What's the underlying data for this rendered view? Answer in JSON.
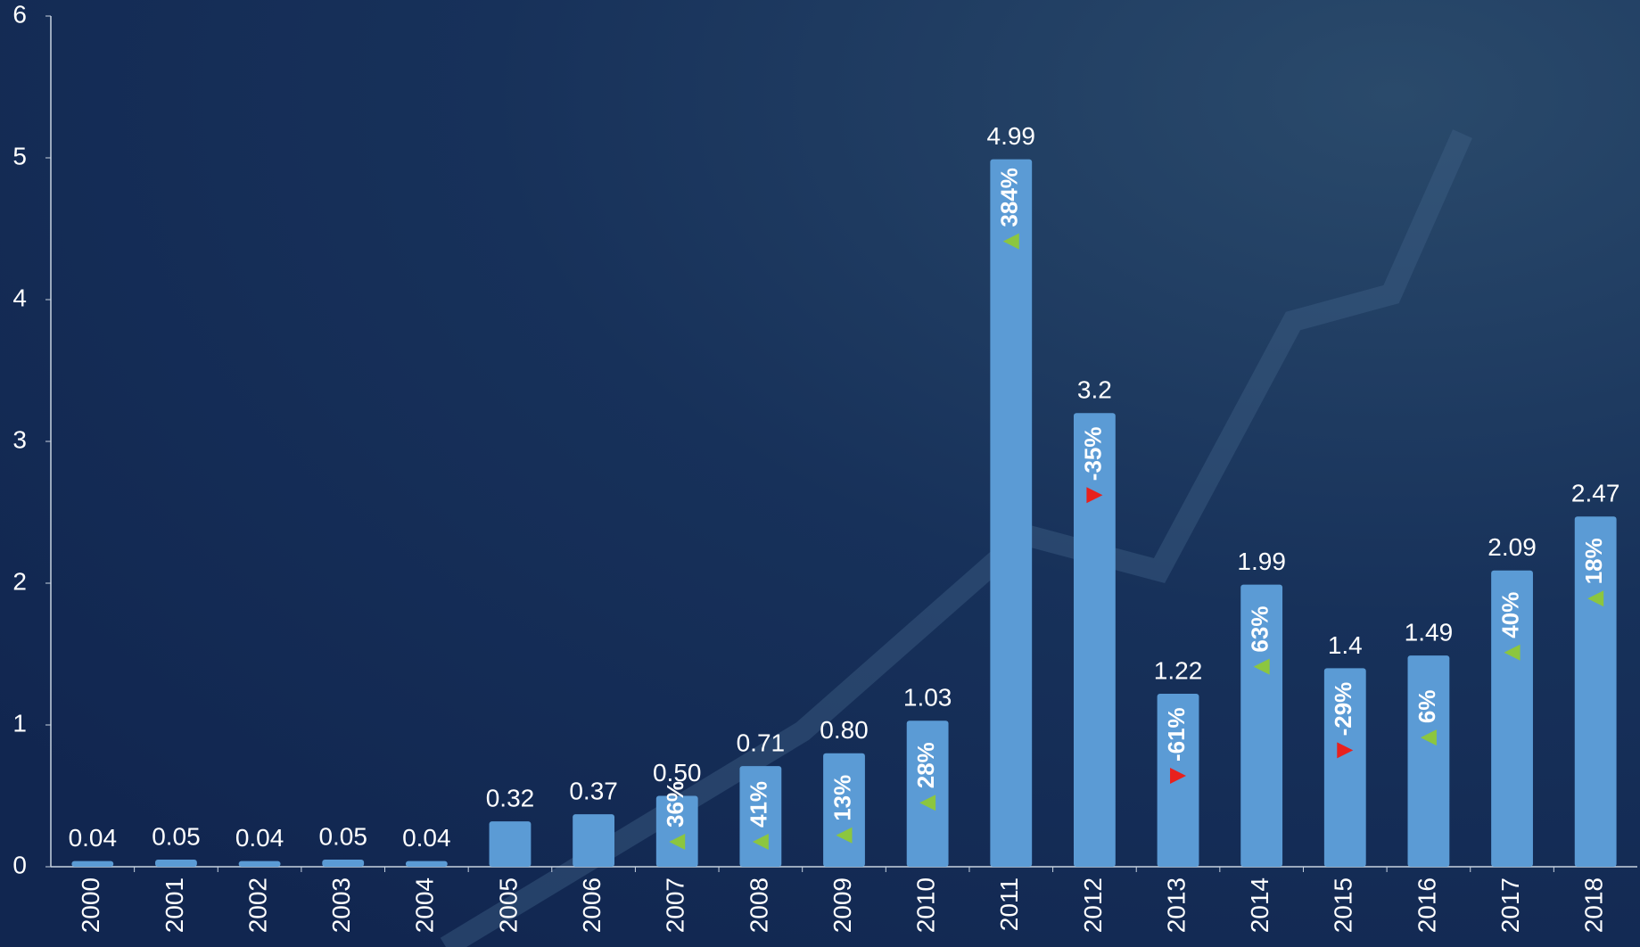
{
  "chart_data": {
    "type": "bar",
    "categories": [
      "2000",
      "2001",
      "2002",
      "2003",
      "2004",
      "2005",
      "2006",
      "2007",
      "2008",
      "2009",
      "2010",
      "2011",
      "2012",
      "2013",
      "2014",
      "2015",
      "2016",
      "2017",
      "2018"
    ],
    "values": [
      0.04,
      0.05,
      0.04,
      0.05,
      0.04,
      0.32,
      0.37,
      0.5,
      0.71,
      0.8,
      1.03,
      4.99,
      3.2,
      1.22,
      1.99,
      1.4,
      1.49,
      2.09,
      2.47
    ],
    "value_labels": [
      "0.04",
      "0.05",
      "0.04",
      "0.05",
      "0.04",
      "0.32",
      "0.37",
      "0.50",
      "0.71",
      "0.80",
      "1.03",
      "4.99",
      "3.2",
      "1.22",
      "1.99",
      "1.4",
      "1.49",
      "2.09",
      "2.47"
    ],
    "changes": [
      null,
      null,
      null,
      null,
      null,
      null,
      null,
      "36%",
      "41%",
      "13%",
      "28%",
      "384%",
      "-35%",
      "-61%",
      "63%",
      "-29%",
      "6%",
      "40%",
      "18%"
    ],
    "color": "#5b9bd5",
    "ylim": [
      0,
      6
    ],
    "yticks": [
      0,
      1,
      2,
      3,
      4,
      5,
      6
    ],
    "grid": false
  }
}
